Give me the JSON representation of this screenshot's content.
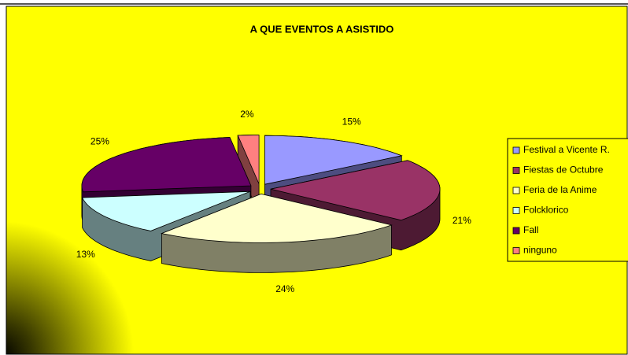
{
  "chart_data": {
    "type": "pie3d",
    "title": "A QUE EVENTOS A ASISTIDO",
    "categories": [
      "Festival a Vicente R.",
      "Fiestas de Octubre",
      "Feria de la Anime",
      "Folcklorico",
      "Fall",
      "ninguno"
    ],
    "values": [
      15,
      21,
      24,
      13,
      25,
      2
    ],
    "value_labels": [
      "15%",
      "21%",
      "24%",
      "13%",
      "25%",
      "2%"
    ],
    "colors": [
      "#9999ff",
      "#993366",
      "#ffffcc",
      "#ccffff",
      "#660066",
      "#ff8080"
    ],
    "legend": "right"
  }
}
